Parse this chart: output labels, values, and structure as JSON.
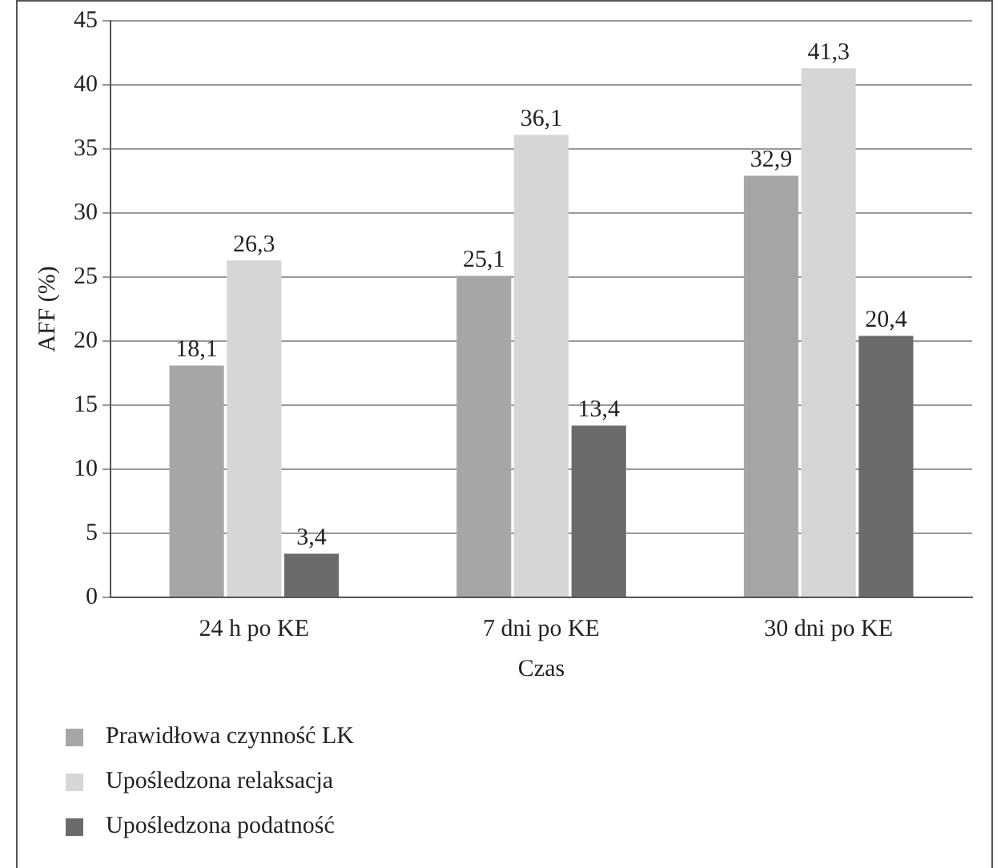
{
  "chart_data": {
    "type": "bar",
    "xlabel": "Czas",
    "ylabel": "AFF (%)",
    "categories": [
      "24 h po KE",
      "7 dni po KE",
      "30 dni po KE"
    ],
    "series": [
      {
        "name": "Prawidłowa czynność LK",
        "color": "#a6a6a6",
        "values": [
          18.1,
          25.1,
          32.9
        ],
        "value_labels": [
          "18,1",
          "25,1",
          "32,9"
        ]
      },
      {
        "name": "Upośledzona relaksacja",
        "color": "#d6d6d6",
        "values": [
          26.3,
          36.1,
          41.3
        ],
        "value_labels": [
          "26,3",
          "36,1",
          "41,3"
        ]
      },
      {
        "name": "Upośledzona podatność",
        "color": "#6b6b6b",
        "values": [
          3.4,
          13.4,
          20.4
        ],
        "value_labels": [
          "3,4",
          "13,4",
          "20,4"
        ]
      }
    ],
    "ylim": [
      0,
      45
    ],
    "yticks": [
      0,
      5,
      10,
      15,
      20,
      25,
      30,
      35,
      40,
      45
    ],
    "grid": "y",
    "legend": "bottom left"
  }
}
